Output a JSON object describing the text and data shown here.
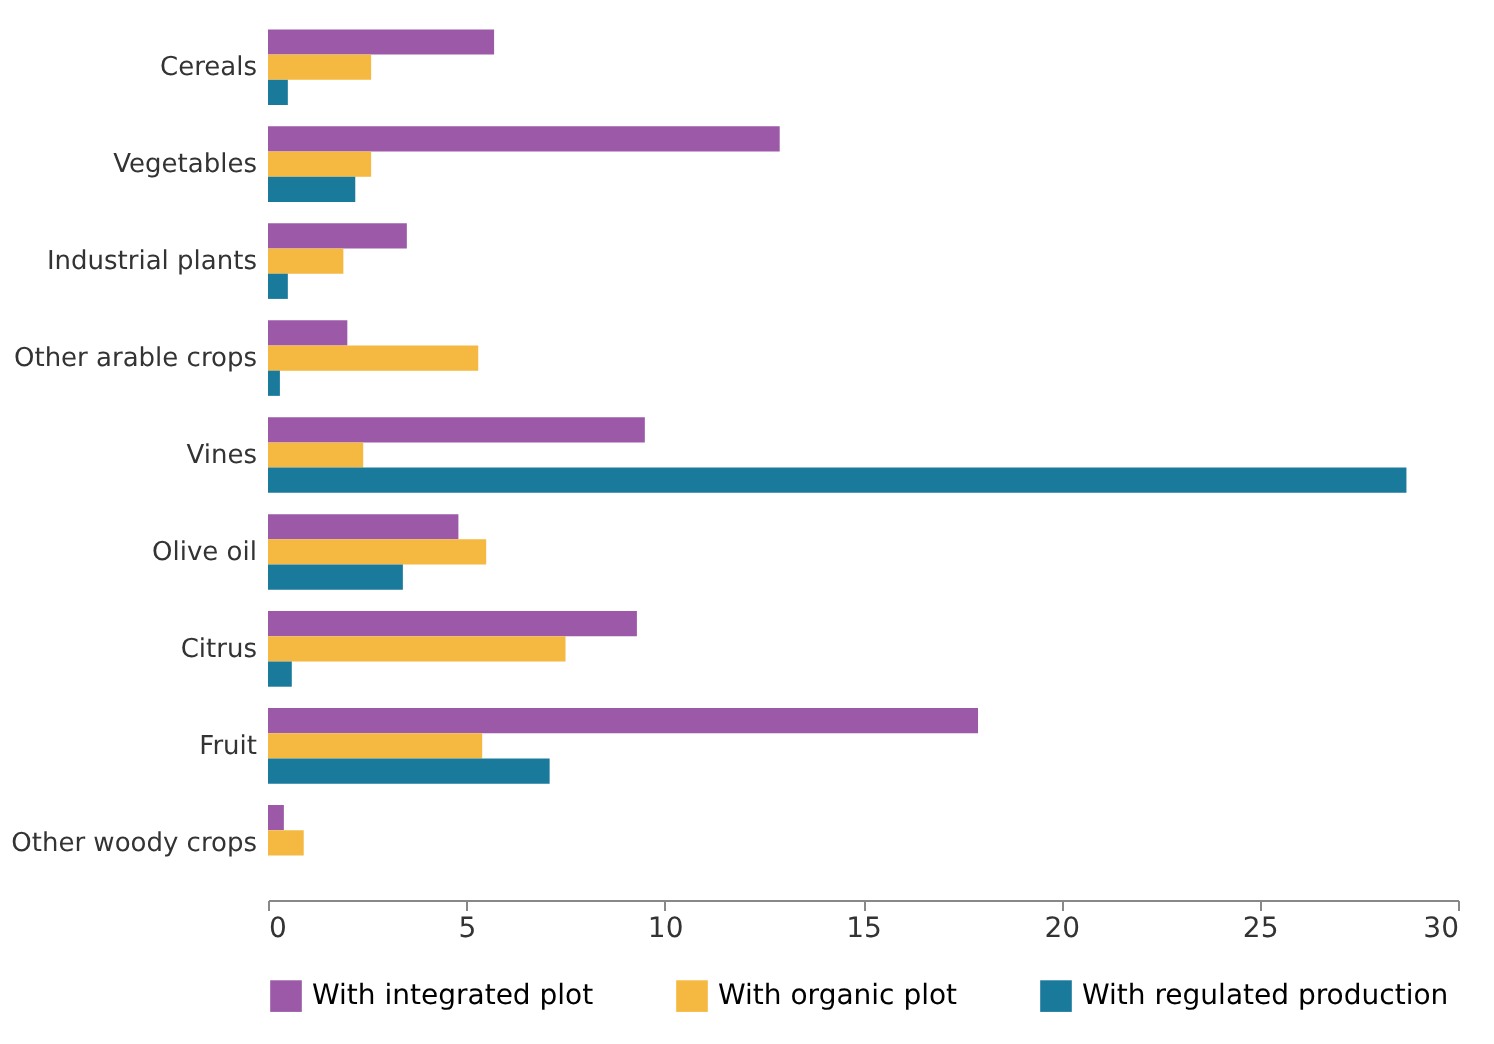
{
  "chart_data": {
    "type": "bar",
    "orientation": "horizontal",
    "categories": [
      "Cereals",
      "Vegetables",
      "Industrial plants",
      "Other arable crops",
      "Vines",
      "Olive oil",
      "Citrus",
      "Fruit",
      "Other woody crops"
    ],
    "series": [
      {
        "name": "With integrated plot",
        "color": "#9b59a8",
        "values": [
          5.7,
          12.9,
          3.5,
          2.0,
          9.5,
          4.8,
          9.3,
          17.9,
          0.4
        ]
      },
      {
        "name": "With organic plot",
        "color": "#f5b841",
        "values": [
          2.6,
          2.6,
          1.9,
          5.3,
          2.4,
          5.5,
          7.5,
          5.4,
          0.9
        ]
      },
      {
        "name": "With regulated production",
        "color": "#1a7a9c",
        "values": [
          0.5,
          2.2,
          0.5,
          0.3,
          28.7,
          3.4,
          0.6,
          7.1,
          null
        ]
      }
    ],
    "xlim": [
      0,
      30
    ],
    "xticks": [
      0,
      5,
      10,
      15,
      20,
      25,
      30
    ],
    "grid": false,
    "legend": "bottom"
  }
}
